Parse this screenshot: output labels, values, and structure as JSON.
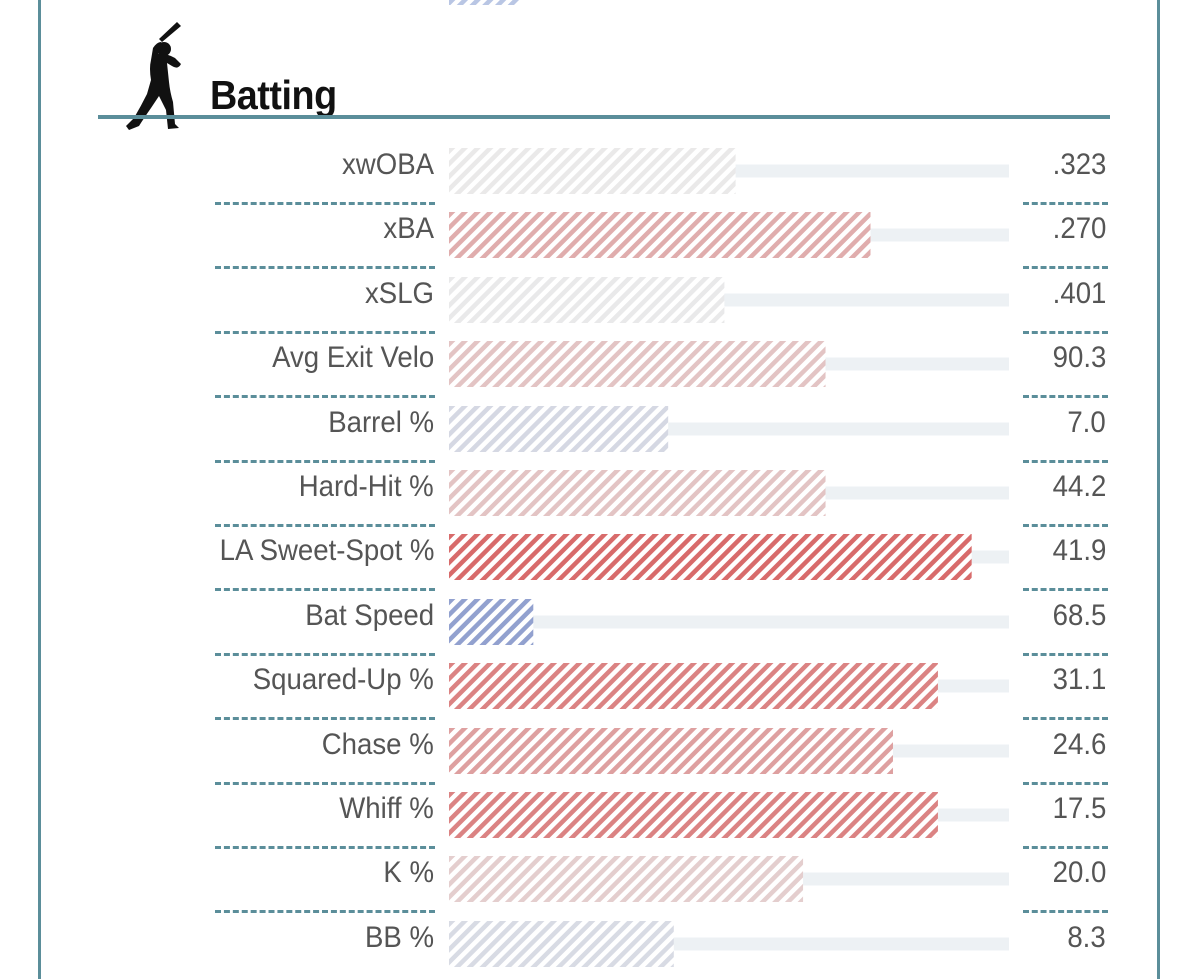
{
  "section": {
    "title": "Batting",
    "icon": "batter-silhouette-icon"
  },
  "colors": {
    "frame": "#5b8e9a",
    "text": "#555555",
    "title": "#111111",
    "track": "#edf1f4",
    "scale_low": "#2f4fb0",
    "scale_mid": "#c8c8c8",
    "scale_high": "#cc1f1f"
  },
  "metrics": [
    {
      "label": "xwOBA",
      "value": ".323",
      "percentile": 51
    },
    {
      "label": "xBA",
      "value": ".270",
      "percentile": 75
    },
    {
      "label": "xSLG",
      "value": ".401",
      "percentile": 49
    },
    {
      "label": "Avg Exit Velo",
      "value": "90.3",
      "percentile": 67
    },
    {
      "label": "Barrel %",
      "value": "7.0",
      "percentile": 39
    },
    {
      "label": "Hard-Hit %",
      "value": "44.2",
      "percentile": 67
    },
    {
      "label": "LA Sweet-Spot %",
      "value": "41.9",
      "percentile": 93
    },
    {
      "label": "Bat Speed",
      "value": "68.5",
      "percentile": 15
    },
    {
      "label": "Squared-Up %",
      "value": "31.1",
      "percentile": 87
    },
    {
      "label": "Chase %",
      "value": "24.6",
      "percentile": 79
    },
    {
      "label": "Whiff %",
      "value": "17.5",
      "percentile": 87
    },
    {
      "label": "K %",
      "value": "20.0",
      "percentile": 63
    },
    {
      "label": "BB %",
      "value": "8.3",
      "percentile": 40
    }
  ]
}
